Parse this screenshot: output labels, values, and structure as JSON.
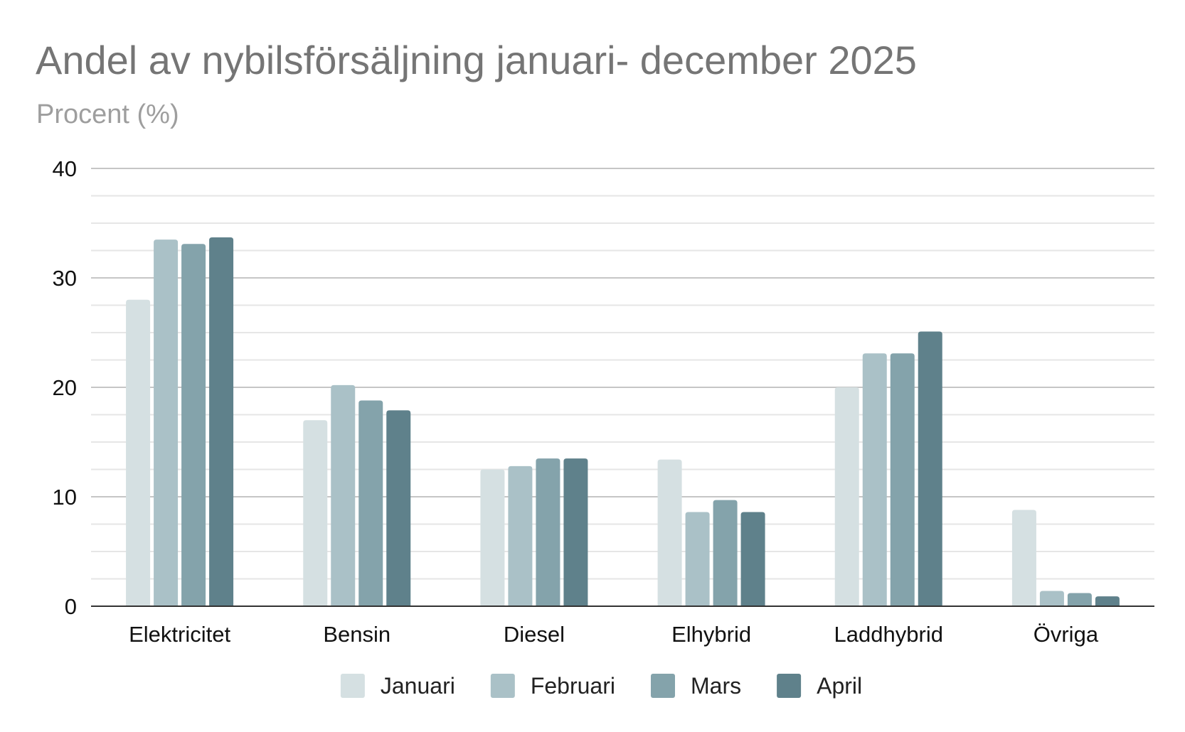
{
  "chart_data": {
    "type": "bar",
    "title": "Andel av nybilsförsäljning januari- december 2025",
    "subtitle": "Procent (%)",
    "xlabel": "",
    "ylabel": "",
    "ylim": [
      0,
      40
    ],
    "yticks": [
      "0",
      "10",
      "20",
      "30",
      "40"
    ],
    "grid": true,
    "legend_position": "bottom",
    "categories": [
      "Elektricitet",
      "Bensin",
      "Diesel",
      "Elhybrid",
      "Laddhybrid",
      "Övriga"
    ],
    "series": [
      {
        "name": "Januari",
        "color": "#d5e0e2",
        "values": [
          28.0,
          17.0,
          12.5,
          13.4,
          20.0,
          8.8
        ]
      },
      {
        "name": "Februari",
        "color": "#aac1c7",
        "values": [
          33.5,
          20.2,
          12.8,
          8.6,
          23.1,
          1.4
        ]
      },
      {
        "name": "Mars",
        "color": "#84a3ab",
        "values": [
          33.1,
          18.8,
          13.5,
          9.7,
          23.1,
          1.2
        ]
      },
      {
        "name": "April",
        "color": "#5f818b",
        "values": [
          33.7,
          17.9,
          13.5,
          8.6,
          25.1,
          0.9
        ]
      }
    ]
  }
}
